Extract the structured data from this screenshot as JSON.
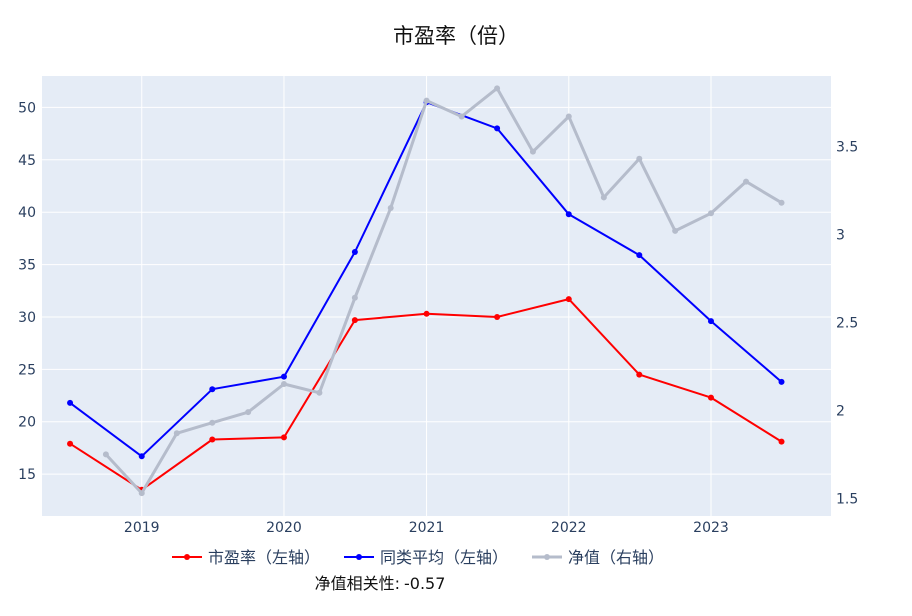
{
  "chart_data": {
    "type": "line",
    "title": "市盈率（倍）",
    "x_ticks": [
      "2019",
      "2020",
      "2021",
      "2022",
      "2023"
    ],
    "y_left": {
      "range": [
        11,
        53
      ],
      "ticks": [
        15,
        20,
        25,
        30,
        35,
        40,
        45,
        50
      ]
    },
    "y_right": {
      "range": [
        1.4,
        3.9
      ],
      "ticks": [
        "1.5",
        "2",
        "2.5",
        "3",
        "3.5"
      ]
    },
    "grid": true,
    "legend_position": "bottom",
    "series": [
      {
        "name": "市盈率（左轴）",
        "axis": "left",
        "color": "#ff0000",
        "x": [
          "2018-07-01",
          "2019-01-01",
          "2019-07-01",
          "2020-01-01",
          "2020-07-01",
          "2021-01-01",
          "2021-07-01",
          "2022-01-01",
          "2022-07-01",
          "2023-01-01",
          "2023-07-01"
        ],
        "y": [
          17.9,
          13.5,
          18.3,
          18.5,
          29.7,
          30.3,
          30.0,
          31.7,
          24.5,
          22.3,
          18.1
        ]
      },
      {
        "name": "同类平均（左轴）",
        "axis": "left",
        "color": "#0000ff",
        "x": [
          "2018-07-01",
          "2019-01-01",
          "2019-07-01",
          "2020-01-01",
          "2020-07-01",
          "2021-01-01",
          "2021-07-01",
          "2022-01-01",
          "2022-07-01",
          "2023-01-01",
          "2023-07-01"
        ],
        "y": [
          21.8,
          16.7,
          23.1,
          24.3,
          36.2,
          50.5,
          48.0,
          39.8,
          35.9,
          29.6,
          23.8
        ]
      },
      {
        "name": "净值（右轴）",
        "axis": "right",
        "color": "#b5bccb",
        "x": [
          "2018-10-01",
          "2019-01-01",
          "2019-04-01",
          "2019-07-01",
          "2019-10-01",
          "2020-01-01",
          "2020-04-01",
          "2020-07-01",
          "2020-10-01",
          "2021-01-01",
          "2021-04-01",
          "2021-07-01",
          "2021-10-01",
          "2022-01-01",
          "2022-04-01",
          "2022-07-01",
          "2022-10-01",
          "2023-01-01",
          "2023-04-01",
          "2023-07-01"
        ],
        "y": [
          1.75,
          1.53,
          1.87,
          1.93,
          1.99,
          2.15,
          2.1,
          2.64,
          3.15,
          3.76,
          3.67,
          3.83,
          3.47,
          3.67,
          3.21,
          3.43,
          3.02,
          3.12,
          3.3,
          3.18
        ]
      }
    ],
    "annotation": {
      "label": "净值相关性:",
      "value": "-0.57"
    }
  }
}
